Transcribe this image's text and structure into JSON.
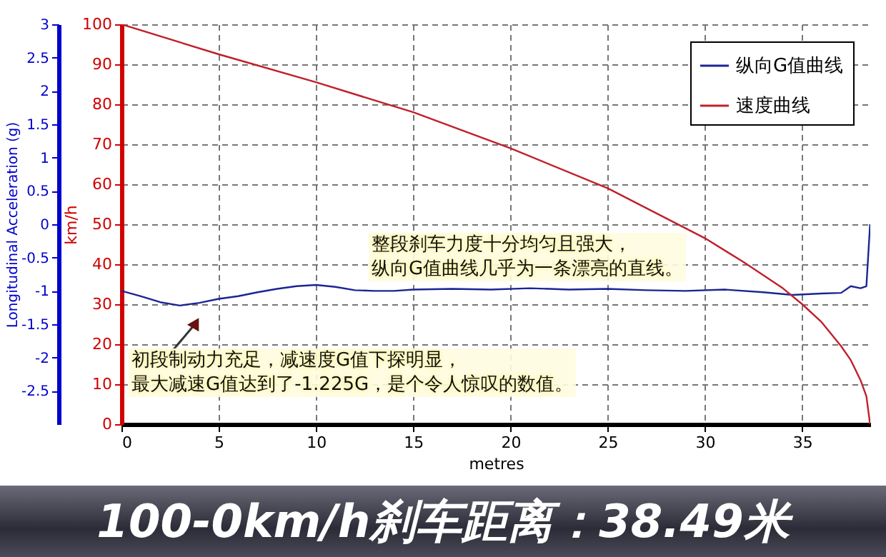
{
  "chart_data": {
    "type": "line",
    "title": "100-0km/h刹车距离：38.49米",
    "xlabel": "metres",
    "ylabel": "Longitudinal Acceleration (g)",
    "y2label": "km/h",
    "xlim": [
      0,
      38.5
    ],
    "xticks": [
      0,
      5,
      10,
      15,
      20,
      25,
      30,
      35
    ],
    "ylim": [
      -3,
      3
    ],
    "yticks": [
      -2.5,
      -2,
      -1.5,
      -1,
      -0.5,
      0,
      0.5,
      1,
      1.5,
      2,
      2.5,
      3
    ],
    "y2lim": [
      0,
      100
    ],
    "y2ticks": [
      0,
      10,
      20,
      30,
      40,
      50,
      60,
      70,
      80,
      90,
      100
    ],
    "grid": true,
    "legend": "top right",
    "line_style": "solid",
    "series": [
      {
        "name": "纵向G值曲线",
        "color": "#1c2594",
        "x": [
          0,
          1,
          2,
          3,
          4,
          5,
          6,
          7,
          8,
          9,
          10,
          11,
          12,
          13,
          14,
          15,
          17,
          19,
          21,
          23,
          25,
          27,
          29,
          31,
          33,
          34.5,
          36,
          37,
          37.5,
          38,
          38.3,
          38.49
        ],
        "values": [
          -1.0,
          -1.08,
          -1.17,
          -1.22,
          -1.18,
          -1.12,
          -1.08,
          -1.02,
          -0.97,
          -0.93,
          -0.91,
          -0.94,
          -0.99,
          -1.0,
          -1.0,
          -0.98,
          -0.97,
          -0.98,
          -0.96,
          -0.98,
          -0.97,
          -0.99,
          -1.0,
          -0.98,
          -1.02,
          -1.06,
          -1.04,
          -1.03,
          -0.93,
          -0.96,
          -0.93,
          0.0
        ]
      },
      {
        "name": "速度曲线",
        "color": "#c0202a",
        "axis": "y2",
        "x": [
          0,
          5,
          10,
          15,
          20,
          25,
          30,
          32,
          34,
          35,
          36,
          37,
          37.5,
          38,
          38.3,
          38.49
        ],
        "values": [
          100,
          92.5,
          85.5,
          78,
          69,
          59,
          46.5,
          40.5,
          34,
          30,
          25.5,
          19.5,
          16,
          11,
          7,
          0
        ]
      }
    ],
    "annotations": [
      "整段刹车力度十分均匀且强大，纵向G值曲线几乎为一条漂亮的直线。",
      {
        "text": "初段制动力充足，减速度G值下探明显，最大减速G值达到了-1.225G，是个令人惊叹的数值。",
        "x": 2.8,
        "y": -1.225
      }
    ]
  }
}
